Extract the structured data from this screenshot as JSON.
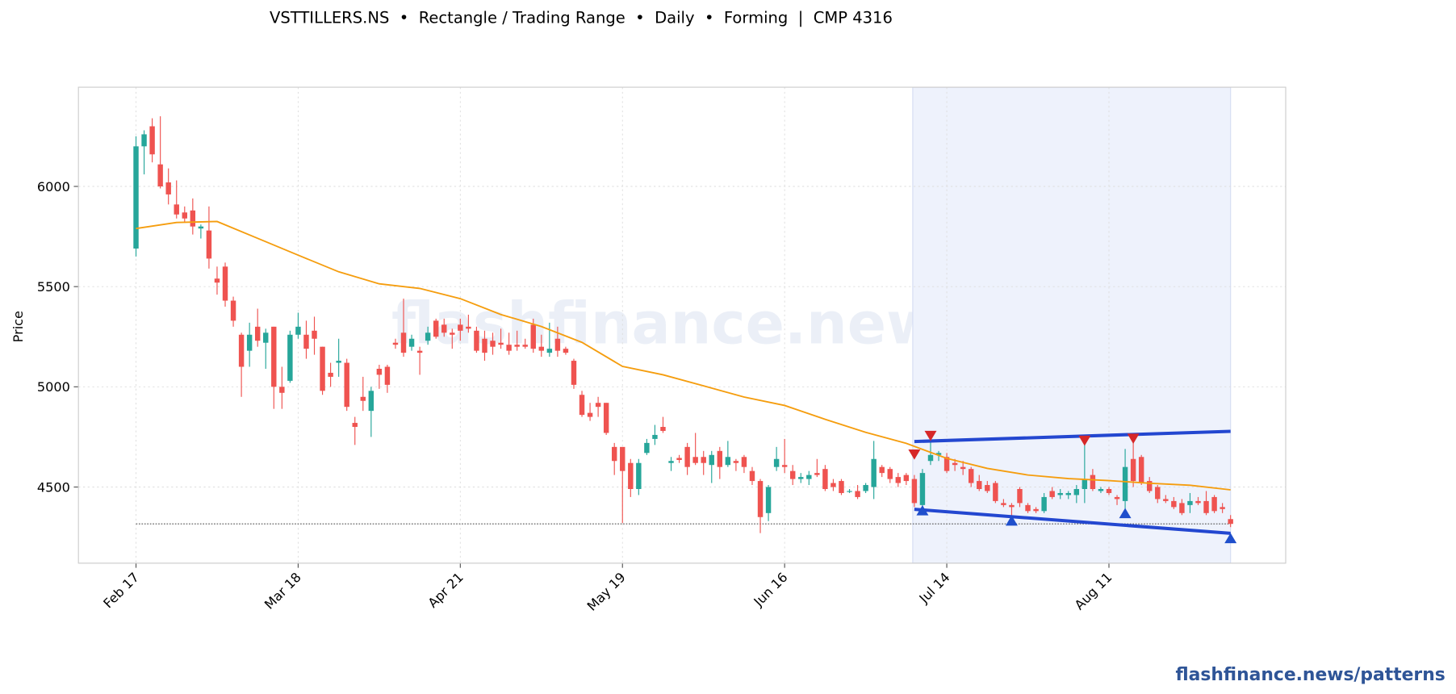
{
  "chart_data": {
    "type": "candlestick",
    "title": "VSTTILLERS.NS  •  Rectangle / Trading Range  •  Daily  •  Forming  |  CMP 4316",
    "y_label": "Price",
    "watermark": "flashfinance.news",
    "footer": "flashfinance.news/patterns",
    "categories": [
      "Feb 17",
      null,
      null,
      null,
      null,
      null,
      null,
      null,
      null,
      null,
      null,
      null,
      null,
      null,
      null,
      null,
      null,
      null,
      null,
      null,
      "Mar 18",
      null,
      null,
      null,
      null,
      null,
      null,
      null,
      null,
      null,
      null,
      null,
      null,
      null,
      null,
      null,
      null,
      null,
      null,
      null,
      "Apr 21",
      null,
      null,
      null,
      null,
      null,
      null,
      null,
      null,
      null,
      null,
      null,
      null,
      null,
      null,
      null,
      null,
      null,
      null,
      null,
      "May 19",
      null,
      null,
      null,
      null,
      null,
      null,
      null,
      null,
      null,
      null,
      null,
      null,
      null,
      null,
      null,
      null,
      null,
      null,
      null,
      "Jun 16",
      null,
      null,
      null,
      null,
      null,
      null,
      null,
      null,
      null,
      null,
      null,
      null,
      null,
      null,
      null,
      null,
      null,
      null,
      null,
      "Jul 14",
      null,
      null,
      null,
      null,
      null,
      null,
      null,
      null,
      null,
      null,
      null,
      null,
      null,
      null,
      null,
      null,
      null,
      null,
      null,
      "Aug 11",
      null,
      null,
      null,
      null,
      null,
      null,
      null,
      null,
      null,
      null,
      null,
      null,
      null,
      null,
      null
    ],
    "open": [
      5690,
      6200,
      6300,
      6110,
      6020,
      5910,
      5870,
      5880,
      5790,
      5780,
      5540,
      5600,
      5430,
      5260,
      5180,
      5300,
      5220,
      5300,
      5000,
      5030,
      5260,
      5260,
      5280,
      5200,
      5070,
      5120,
      5120,
      4820,
      4950,
      4880,
      5090,
      5100,
      5220,
      5270,
      5200,
      5180,
      5230,
      5330,
      5310,
      5270,
      5310,
      5300,
      5280,
      5240,
      5230,
      5220,
      5210,
      5210,
      5210,
      5310,
      5200,
      5170,
      5240,
      5190,
      5130,
      4960,
      4870,
      4920,
      4920,
      4700,
      4700,
      4620,
      4490,
      4670,
      4740,
      4800,
      4620,
      4645,
      4700,
      4650,
      4650,
      4610,
      4680,
      4610,
      4630,
      4650,
      4580,
      4530,
      4370,
      4600,
      4610,
      4580,
      4540,
      4540,
      4570,
      4590,
      4520,
      4530,
      4480,
      4480,
      4480,
      4500,
      4600,
      4590,
      4550,
      4560,
      4540,
      4410,
      4630,
      4660,
      4650,
      4620,
      4600,
      4590,
      4530,
      4510,
      4520,
      4420,
      4410,
      4490,
      4410,
      4390,
      4380,
      4480,
      4460,
      4460,
      4460,
      4490,
      4560,
      4480,
      4490,
      4450,
      4430,
      4640,
      4650,
      4530,
      4500,
      4440,
      4430,
      4420,
      4410,
      4430,
      4430,
      4450,
      4400,
      4340
    ],
    "high": [
      6250,
      6280,
      6340,
      6350,
      6090,
      6030,
      5900,
      5940,
      5810,
      5900,
      5600,
      5620,
      5450,
      5270,
      5320,
      5390,
      5290,
      5300,
      5100,
      5280,
      5370,
      5330,
      5350,
      5200,
      5120,
      5240,
      5140,
      4850,
      5050,
      5000,
      5110,
      5110,
      5240,
      5440,
      5260,
      5200,
      5300,
      5340,
      5340,
      5290,
      5340,
      5360,
      5300,
      5280,
      5270,
      5290,
      5270,
      5280,
      5240,
      5340,
      5260,
      5320,
      5300,
      5200,
      5140,
      4980,
      4920,
      4950,
      4920,
      4720,
      4700,
      4640,
      4640,
      4740,
      4810,
      4850,
      4650,
      4660,
      4720,
      4770,
      4680,
      4680,
      4700,
      4730,
      4640,
      4660,
      4600,
      4540,
      4510,
      4700,
      4740,
      4610,
      4570,
      4580,
      4640,
      4610,
      4540,
      4540,
      4490,
      4510,
      4520,
      4730,
      4610,
      4600,
      4570,
      4570,
      4560,
      4590,
      4730,
      4680,
      4670,
      4640,
      4630,
      4600,
      4560,
      4530,
      4530,
      4440,
      4420,
      4500,
      4420,
      4400,
      4470,
      4500,
      4490,
      4480,
      4510,
      4730,
      4590,
      4500,
      4500,
      4460,
      4690,
      4740,
      4660,
      4550,
      4510,
      4460,
      4450,
      4440,
      4470,
      4450,
      4480,
      4460,
      4420,
      4360
    ],
    "low": [
      5650,
      6060,
      6120,
      5990,
      5910,
      5840,
      5820,
      5760,
      5740,
      5590,
      5460,
      5400,
      5300,
      4950,
      5100,
      5200,
      5090,
      4890,
      4890,
      5020,
      5240,
      5140,
      5160,
      4960,
      5000,
      5050,
      4880,
      4710,
      4880,
      4750,
      4990,
      4970,
      5190,
      5150,
      5180,
      5060,
      5210,
      5240,
      5250,
      5190,
      5230,
      5270,
      5170,
      5130,
      5160,
      5190,
      5160,
      5180,
      5190,
      5170,
      5150,
      5150,
      5150,
      5160,
      4990,
      4850,
      4830,
      4850,
      4760,
      4560,
      4320,
      4450,
      4460,
      4660,
      4710,
      4770,
      4580,
      4620,
      4560,
      4610,
      4560,
      4520,
      4540,
      4600,
      4580,
      4570,
      4510,
      4270,
      4330,
      4580,
      4570,
      4510,
      4520,
      4510,
      4550,
      4480,
      4480,
      4460,
      4470,
      4440,
      4470,
      4440,
      4550,
      4520,
      4500,
      4510,
      4400,
      4380,
      4610,
      4630,
      4570,
      4580,
      4560,
      4500,
      4480,
      4470,
      4420,
      4400,
      4340,
      4400,
      4370,
      4370,
      4370,
      4440,
      4440,
      4440,
      4420,
      4420,
      4480,
      4470,
      4460,
      4410,
      4380,
      4500,
      4510,
      4470,
      4420,
      4420,
      4390,
      4360,
      4370,
      4410,
      4360,
      4370,
      4370,
      4300
    ],
    "close": [
      6200,
      6260,
      6160,
      6000,
      5960,
      5860,
      5840,
      5800,
      5800,
      5640,
      5520,
      5430,
      5330,
      5100,
      5260,
      5230,
      5270,
      5000,
      4970,
      5260,
      5300,
      5190,
      5240,
      4980,
      5050,
      5130,
      4900,
      4800,
      4930,
      4980,
      5060,
      5010,
      5210,
      5170,
      5240,
      5170,
      5270,
      5250,
      5270,
      5260,
      5280,
      5290,
      5180,
      5170,
      5200,
      5210,
      5180,
      5200,
      5200,
      5190,
      5180,
      5190,
      5180,
      5170,
      5010,
      4860,
      4850,
      4900,
      4770,
      4630,
      4580,
      4490,
      4620,
      4720,
      4760,
      4780,
      4630,
      4635,
      4600,
      4620,
      4620,
      4660,
      4600,
      4650,
      4620,
      4600,
      4530,
      4350,
      4500,
      4640,
      4600,
      4540,
      4550,
      4560,
      4560,
      4490,
      4500,
      4470,
      4480,
      4450,
      4510,
      4640,
      4570,
      4540,
      4520,
      4530,
      4420,
      4570,
      4660,
      4670,
      4580,
      4610,
      4590,
      4520,
      4490,
      4480,
      4430,
      4410,
      4400,
      4420,
      4380,
      4380,
      4450,
      4450,
      4470,
      4470,
      4490,
      4540,
      4490,
      4490,
      4470,
      4440,
      4600,
      4530,
      4520,
      4480,
      4440,
      4430,
      4400,
      4370,
      4430,
      4420,
      4370,
      4380,
      4390,
      4316
    ],
    "up_color": "#26a69a",
    "down_color": "#ef5350",
    "moving_average": {
      "color": "#f59d0e",
      "x": [
        0,
        5,
        10,
        15,
        20,
        25,
        30,
        35,
        40,
        45,
        50,
        55,
        60,
        65,
        70,
        75,
        80,
        85,
        90,
        95,
        100,
        105,
        110,
        115,
        120,
        125,
        130,
        135
      ],
      "values": [
        5790,
        5820,
        5825,
        5741,
        5657,
        5574,
        5514,
        5491,
        5440,
        5361,
        5301,
        5222,
        5102,
        5060,
        5005,
        4949,
        4907,
        4838,
        4773,
        4718,
        4643,
        4593,
        4560,
        4542,
        4532,
        4519,
        4509,
        4486
      ]
    },
    "pattern": {
      "x_range": [
        96,
        135
      ],
      "shade_color": "#eef2fc",
      "line_color": "#2347d0",
      "resistance": {
        "x": [
          96,
          135
        ],
        "values": [
          4727,
          4778
        ]
      },
      "support": {
        "x": [
          96,
          135
        ],
        "values": [
          4389,
          4269
        ]
      },
      "pivot_highs": {
        "color": "#d62728",
        "x": [
          96,
          98,
          117,
          123
        ],
        "values": [
          4662,
          4755,
          4731,
          4741
        ]
      },
      "pivot_lows": {
        "color": "#1f4fcc",
        "x": [
          97,
          108,
          122,
          135
        ],
        "values": [
          4384,
          4333,
          4370,
          4245
        ]
      }
    },
    "cmp_level": 4316,
    "xlim": [
      -7.1,
      141.8
    ],
    "ylim": [
      4120,
      6495
    ],
    "yticks": [
      4500,
      5000,
      5500,
      6000
    ],
    "grid": true
  }
}
